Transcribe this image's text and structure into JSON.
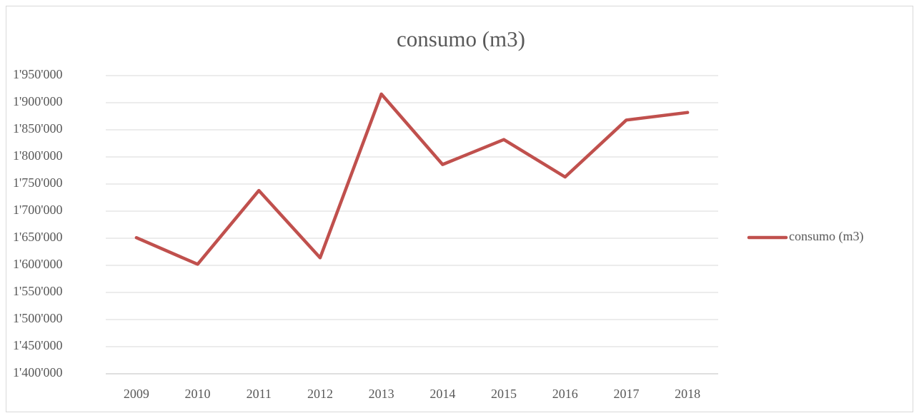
{
  "chart_data": {
    "type": "line",
    "title": "consumo (m3)",
    "categories": [
      "2009",
      "2010",
      "2011",
      "2012",
      "2013",
      "2014",
      "2015",
      "2016",
      "2017",
      "2018"
    ],
    "series": [
      {
        "name": "consumo (m3)",
        "color": "#c0504d",
        "values": [
          1651000,
          1602000,
          1738000,
          1614000,
          1916000,
          1786000,
          1832000,
          1763000,
          1868000,
          1882000
        ]
      }
    ],
    "ylim": [
      1400000,
      1950000
    ],
    "yticks": [
      {
        "value": 1400000,
        "label": "1'400'000"
      },
      {
        "value": 1450000,
        "label": "1'450'000"
      },
      {
        "value": 1500000,
        "label": "1'500'000"
      },
      {
        "value": 1550000,
        "label": "1'550'000"
      },
      {
        "value": 1600000,
        "label": "1'600'000"
      },
      {
        "value": 1650000,
        "label": "1'650'000"
      },
      {
        "value": 1700000,
        "label": "1'700'000"
      },
      {
        "value": 1750000,
        "label": "1'750'000"
      },
      {
        "value": 1800000,
        "label": "1'800'000"
      },
      {
        "value": 1850000,
        "label": "1'850'000"
      },
      {
        "value": 1900000,
        "label": "1'900'000"
      },
      {
        "value": 1950000,
        "label": "1'950'000"
      }
    ],
    "grid": true,
    "legend": "right"
  }
}
